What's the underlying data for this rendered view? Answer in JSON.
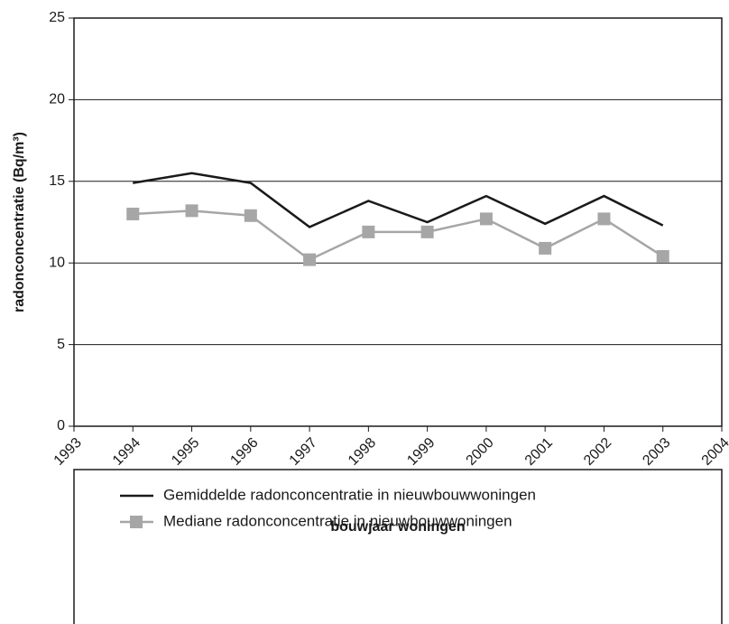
{
  "chart_data": {
    "type": "line",
    "x_label": "bouwjaar woningen",
    "y_label": "radonconcentratie (Bq/m³)",
    "x": [
      1994,
      1995,
      1996,
      1997,
      1998,
      1999,
      2000,
      2001,
      2002,
      2003
    ],
    "series": [
      {
        "name": "Gemiddelde radonconcentratie in nieuwbouwwoningen",
        "color": "#1a1a1a",
        "marker": "none",
        "values": [
          14.9,
          15.5,
          14.9,
          12.2,
          13.8,
          12.5,
          14.1,
          12.4,
          14.1,
          12.3
        ]
      },
      {
        "name": "Mediane radonconcentratie in nieuwbouwwoningen",
        "color": "#a6a6a6",
        "marker": "square",
        "values": [
          13.0,
          13.2,
          12.9,
          10.2,
          11.9,
          11.9,
          12.7,
          10.9,
          12.7,
          10.4
        ]
      }
    ],
    "xlim": [
      1993,
      2004
    ],
    "xticks": [
      1993,
      1994,
      1995,
      1996,
      1997,
      1998,
      1999,
      2000,
      2001,
      2002,
      2003,
      2004
    ],
    "ylim": [
      0,
      25
    ],
    "yticks": [
      0,
      5,
      10,
      15,
      20,
      25
    ],
    "grid": true,
    "legend": "below"
  }
}
